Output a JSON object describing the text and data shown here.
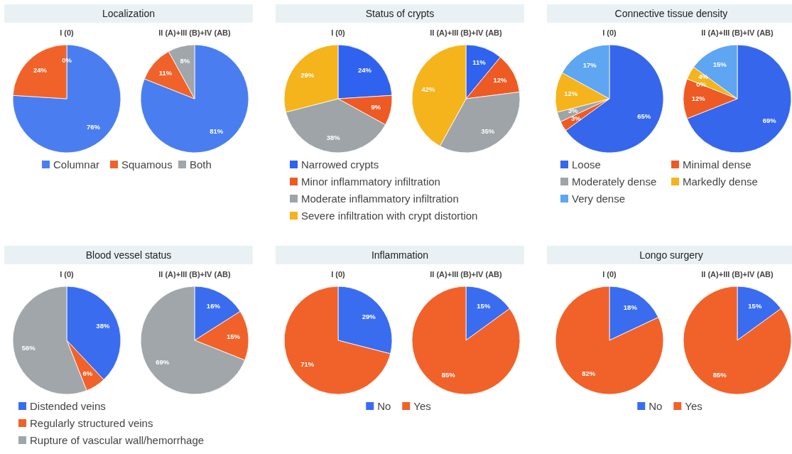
{
  "chart_data": [
    {
      "type": "pie",
      "title": "Localization",
      "categories": [
        "Columnar",
        "Squamous",
        "Both"
      ],
      "colors": [
        "#4a7ef0",
        "#f0622a",
        "#a0a6aa"
      ],
      "legend": "bottom",
      "series": [
        {
          "name": "I (0)",
          "values": [
            76,
            24,
            0
          ],
          "value_labels": [
            "76%",
            "24%",
            "0%"
          ]
        },
        {
          "name": "II (A)+III (B)+IV (AB)",
          "values": [
            81,
            11,
            8
          ],
          "value_labels": [
            "81%",
            "11%",
            "8%"
          ]
        }
      ]
    },
    {
      "type": "pie",
      "title": "Status of crypts",
      "categories": [
        "Narrowed crypts",
        "Minor inflammatory infiltration",
        "Moderate inflammatory infiltration",
        "Severe infiltration with crypt distortion"
      ],
      "colors": [
        "#2f62ee",
        "#ee5a24",
        "#9ea4a8",
        "#f5b41c"
      ],
      "legend": "bottom",
      "series": [
        {
          "name": "I (0)",
          "values": [
            24,
            9,
            38,
            29
          ],
          "value_labels": [
            "24%",
            "9%",
            "38%",
            "29%"
          ]
        },
        {
          "name": "II (A)+III (B)+IV (AB)",
          "values": [
            11,
            12,
            35,
            42
          ],
          "value_labels": [
            "11%",
            "12%",
            "35%",
            "42%"
          ]
        }
      ]
    },
    {
      "type": "pie",
      "title": "Connective tissue density",
      "categories": [
        "Loose",
        "Minimal dense",
        "Moderately dense",
        "Markedly dense",
        "Very dense"
      ],
      "colors": [
        "#3566ec",
        "#ee5a24",
        "#9ea4a8",
        "#f5b41c",
        "#5ea6f2"
      ],
      "legend": "bottom",
      "series": [
        {
          "name": "I (0)",
          "values": [
            65,
            3,
            3,
            12,
            17
          ],
          "value_labels": [
            "65%",
            "3%",
            "3%",
            "12%",
            "17%"
          ]
        },
        {
          "name": "II (A)+III (B)+IV (AB)",
          "values": [
            69,
            12,
            0,
            4,
            15
          ],
          "value_labels": [
            "69%",
            "12%",
            "0%",
            "4%",
            "15%"
          ]
        }
      ]
    },
    {
      "type": "pie",
      "title": "Blood vessel status",
      "categories": [
        "Distended veins",
        "Regularly structured veins",
        "Rupture of vascular wall/hemorrhage"
      ],
      "colors": [
        "#3a6cf0",
        "#f0622a",
        "#a0a6aa"
      ],
      "legend": "bottom",
      "series": [
        {
          "name": "I (0)",
          "values": [
            38,
            6,
            56
          ],
          "value_labels": [
            "38%",
            "6%",
            "56%"
          ]
        },
        {
          "name": "II (A)+III (B)+IV (AB)",
          "values": [
            16,
            15,
            69
          ],
          "value_labels": [
            "16%",
            "15%",
            "69%"
          ]
        }
      ]
    },
    {
      "type": "pie",
      "title": "Inflammation",
      "categories": [
        "No",
        "Yes"
      ],
      "colors": [
        "#3a6cf0",
        "#f0622a"
      ],
      "legend": "bottom",
      "series": [
        {
          "name": "I (0)",
          "values": [
            29,
            71
          ],
          "value_labels": [
            "29%",
            "71%"
          ]
        },
        {
          "name": "II (A)+III (B)+IV (AB)",
          "values": [
            15,
            85
          ],
          "value_labels": [
            "15%",
            "85%"
          ]
        }
      ]
    },
    {
      "type": "pie",
      "title": "Longo surgery",
      "categories": [
        "No",
        "Yes"
      ],
      "colors": [
        "#3a6cf0",
        "#f0622a"
      ],
      "legend": "bottom",
      "series": [
        {
          "name": "I (0)",
          "values": [
            18,
            82
          ],
          "value_labels": [
            "18%",
            "82%"
          ]
        },
        {
          "name": "II (A)+III (B)+IV (AB)",
          "values": [
            15,
            85
          ],
          "value_labels": [
            "15%",
            "85%"
          ]
        }
      ]
    }
  ]
}
